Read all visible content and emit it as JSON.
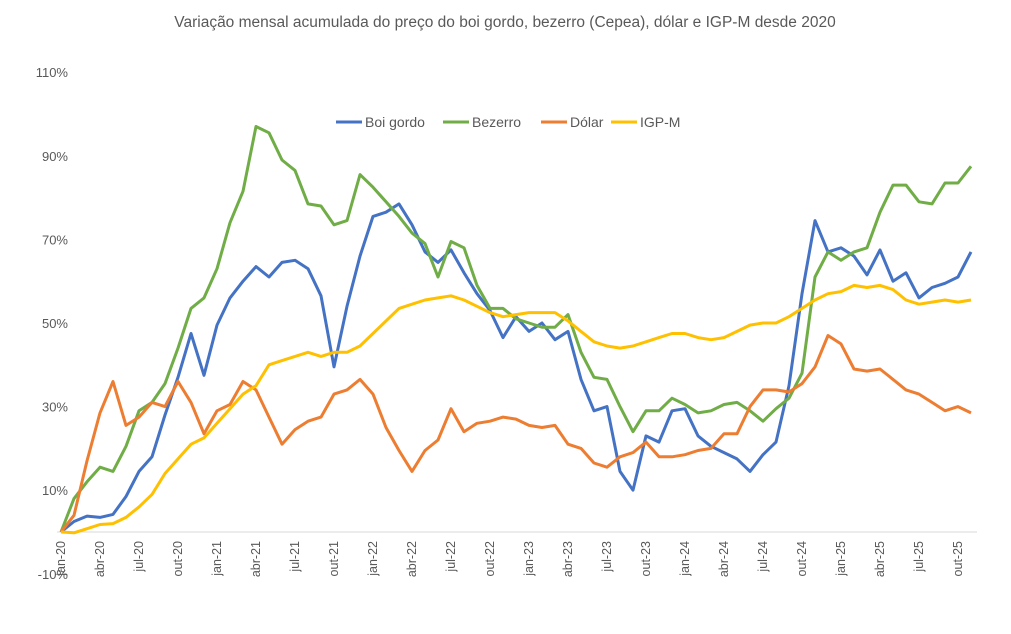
{
  "chart_data": {
    "type": "line",
    "title": "Variação mensal acumulada do preço do boi gordo, bezerro (Cepea), dólar e IGP-M desde 2020",
    "xlabel": "",
    "ylabel": "",
    "ylim": [
      -10,
      110
    ],
    "yticks": [
      -10,
      10,
      30,
      50,
      70,
      90,
      110
    ],
    "ytick_format": "%",
    "grid": false,
    "legend_position": "top-center",
    "x": [
      "jan-20",
      "fev-20",
      "mar-20",
      "abr-20",
      "mai-20",
      "jun-20",
      "jul-20",
      "ago-20",
      "set-20",
      "out-20",
      "nov-20",
      "dez-20",
      "jan-21",
      "fev-21",
      "mar-21",
      "abr-21",
      "mai-21",
      "jun-21",
      "jul-21",
      "ago-21",
      "set-21",
      "out-21",
      "nov-21",
      "dez-21",
      "jan-22",
      "fev-22",
      "mar-22",
      "abr-22",
      "mai-22",
      "jun-22",
      "jul-22",
      "ago-22",
      "set-22",
      "out-22",
      "nov-22",
      "dez-22",
      "jan-23",
      "fev-23",
      "mar-23",
      "abr-23",
      "mai-23",
      "jun-23",
      "jul-23",
      "ago-23",
      "set-23",
      "out-23",
      "nov-23",
      "dez-23",
      "jan-24",
      "fev-24",
      "mar-24",
      "abr-24",
      "mai-24",
      "jun-24",
      "jul-24",
      "ago-24",
      "set-24",
      "out-24",
      "nov-24",
      "dez-24",
      "jan-25",
      "fev-25",
      "mar-25",
      "abr-25",
      "mai-25",
      "jun-25",
      "jul-25",
      "ago-25",
      "set-25",
      "out-25",
      "nov-25"
    ],
    "xtick_step": 3,
    "series": [
      {
        "name": "Boi gordo",
        "color": "#4472C4",
        "values": [
          0,
          2.5,
          3.8,
          3.5,
          4.2,
          8.5,
          14.5,
          18,
          28,
          37,
          47.5,
          37.5,
          49.5,
          56,
          60,
          63.5,
          61,
          64.5,
          65,
          63,
          56.5,
          39.5,
          54,
          66,
          75.5,
          76.5,
          78.5,
          73.5,
          67,
          64.5,
          67.5,
          62,
          57,
          53,
          46.5,
          51.5,
          48,
          50,
          46,
          48,
          36.5,
          29,
          30,
          14.5,
          10,
          23,
          21.5,
          29,
          29.5,
          23,
          20.5,
          19,
          17.5,
          14.5,
          18.5,
          21.5,
          35,
          57,
          74.5,
          67,
          68,
          66,
          61.5,
          67.5,
          60,
          62,
          56,
          58.5,
          59.5,
          61,
          67
        ]
      },
      {
        "name": "Bezerro",
        "color": "#70AD47",
        "values": [
          0,
          8,
          12,
          15.5,
          14.5,
          20.5,
          29,
          31,
          35.5,
          44,
          53.5,
          56,
          63,
          74,
          81.5,
          97,
          95.5,
          89,
          86.5,
          78.5,
          78,
          73.5,
          74.5,
          85.5,
          82.5,
          79,
          75.5,
          71.5,
          69,
          61,
          69.5,
          68,
          59,
          53.5,
          53.5,
          51,
          50,
          49,
          49,
          52,
          43,
          37,
          36.5,
          30,
          24,
          29,
          29,
          32,
          30.5,
          28.5,
          29,
          30.5,
          31,
          29,
          26.5,
          29.5,
          32,
          38,
          61,
          67,
          65,
          67,
          68,
          76.5,
          83,
          83,
          79,
          78.5,
          83.5,
          83.5,
          87.5
        ]
      },
      {
        "name": "Dólar",
        "color": "#ED7D31",
        "values": [
          0,
          4,
          17,
          28.5,
          36,
          25.5,
          27.5,
          31,
          30,
          36,
          31,
          23.5,
          29,
          30.5,
          36,
          34,
          27.5,
          21,
          24.5,
          26.5,
          27.5,
          33,
          34,
          36.5,
          33,
          25,
          19.5,
          14.5,
          19.5,
          22,
          29.5,
          24,
          26,
          26.5,
          27.5,
          27,
          25.5,
          25,
          25.5,
          21,
          20,
          16.5,
          15.5,
          18,
          19,
          21.5,
          18,
          18,
          18.5,
          19.5,
          20,
          23.5,
          23.5,
          30,
          34,
          34,
          33.5,
          35.5,
          39.5,
          47,
          45,
          39,
          38.5,
          39,
          36.5,
          34,
          33,
          31,
          29,
          30,
          28.5
        ]
      },
      {
        "name": "IGP-M",
        "color": "#FFC000",
        "values": [
          0,
          -0.2,
          0.8,
          1.8,
          2,
          3.5,
          6,
          9,
          14,
          17.5,
          21,
          22.5,
          26,
          29.5,
          33,
          35,
          40,
          41,
          42,
          43,
          42,
          43,
          43,
          44.5,
          47.5,
          50.5,
          53.5,
          54.5,
          55.5,
          56,
          56.5,
          55.5,
          54,
          52.5,
          51.5,
          52,
          52.5,
          52.5,
          52.5,
          50.5,
          48,
          45.5,
          44.5,
          44,
          44.5,
          45.5,
          46.5,
          47.5,
          47.5,
          46.5,
          46,
          46.5,
          48,
          49.5,
          50,
          50,
          51.5,
          53.5,
          55.5,
          57,
          57.5,
          59,
          58.5,
          59,
          58,
          55.5,
          54.5,
          55,
          55.5,
          55,
          55.5
        ]
      }
    ]
  }
}
